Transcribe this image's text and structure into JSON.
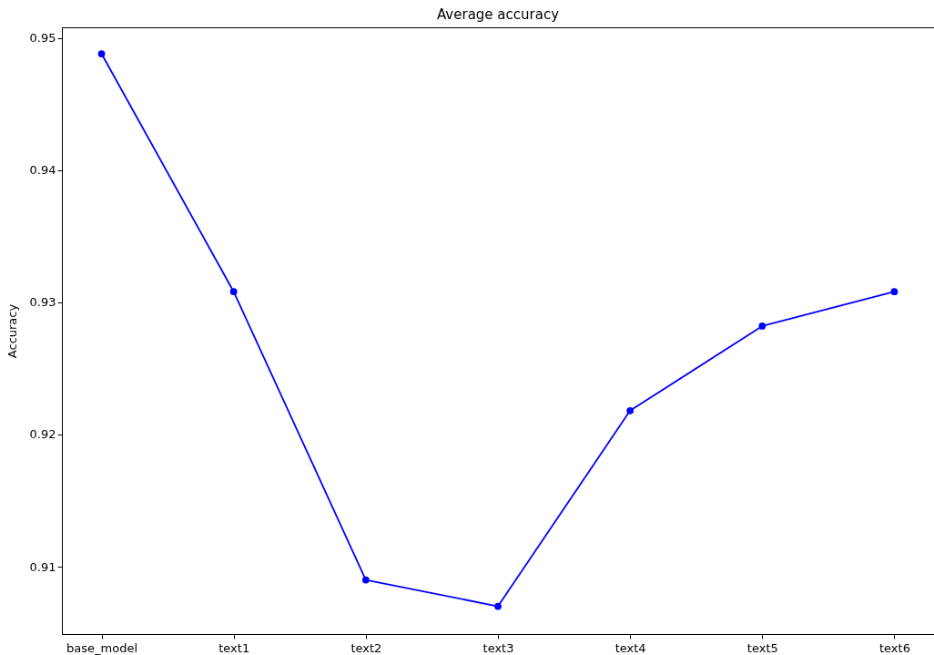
{
  "chart_data": {
    "type": "line",
    "title": "Average accuracy",
    "ylabel": "Accuracy",
    "categories": [
      "base_model",
      "text1",
      "text2",
      "text3",
      "text4",
      "text5",
      "text6"
    ],
    "series": [
      {
        "color": "#0000ff",
        "values": [
          0.9488,
          0.9308,
          0.909,
          0.907,
          0.9218,
          0.9282,
          0.9308
        ]
      }
    ],
    "ylim": [
      0.9049,
      0.9508
    ],
    "yticks": [
      0.91,
      0.92,
      0.93,
      0.94,
      0.95
    ],
    "grid": false,
    "marker": "circle",
    "line_style": "solid"
  }
}
